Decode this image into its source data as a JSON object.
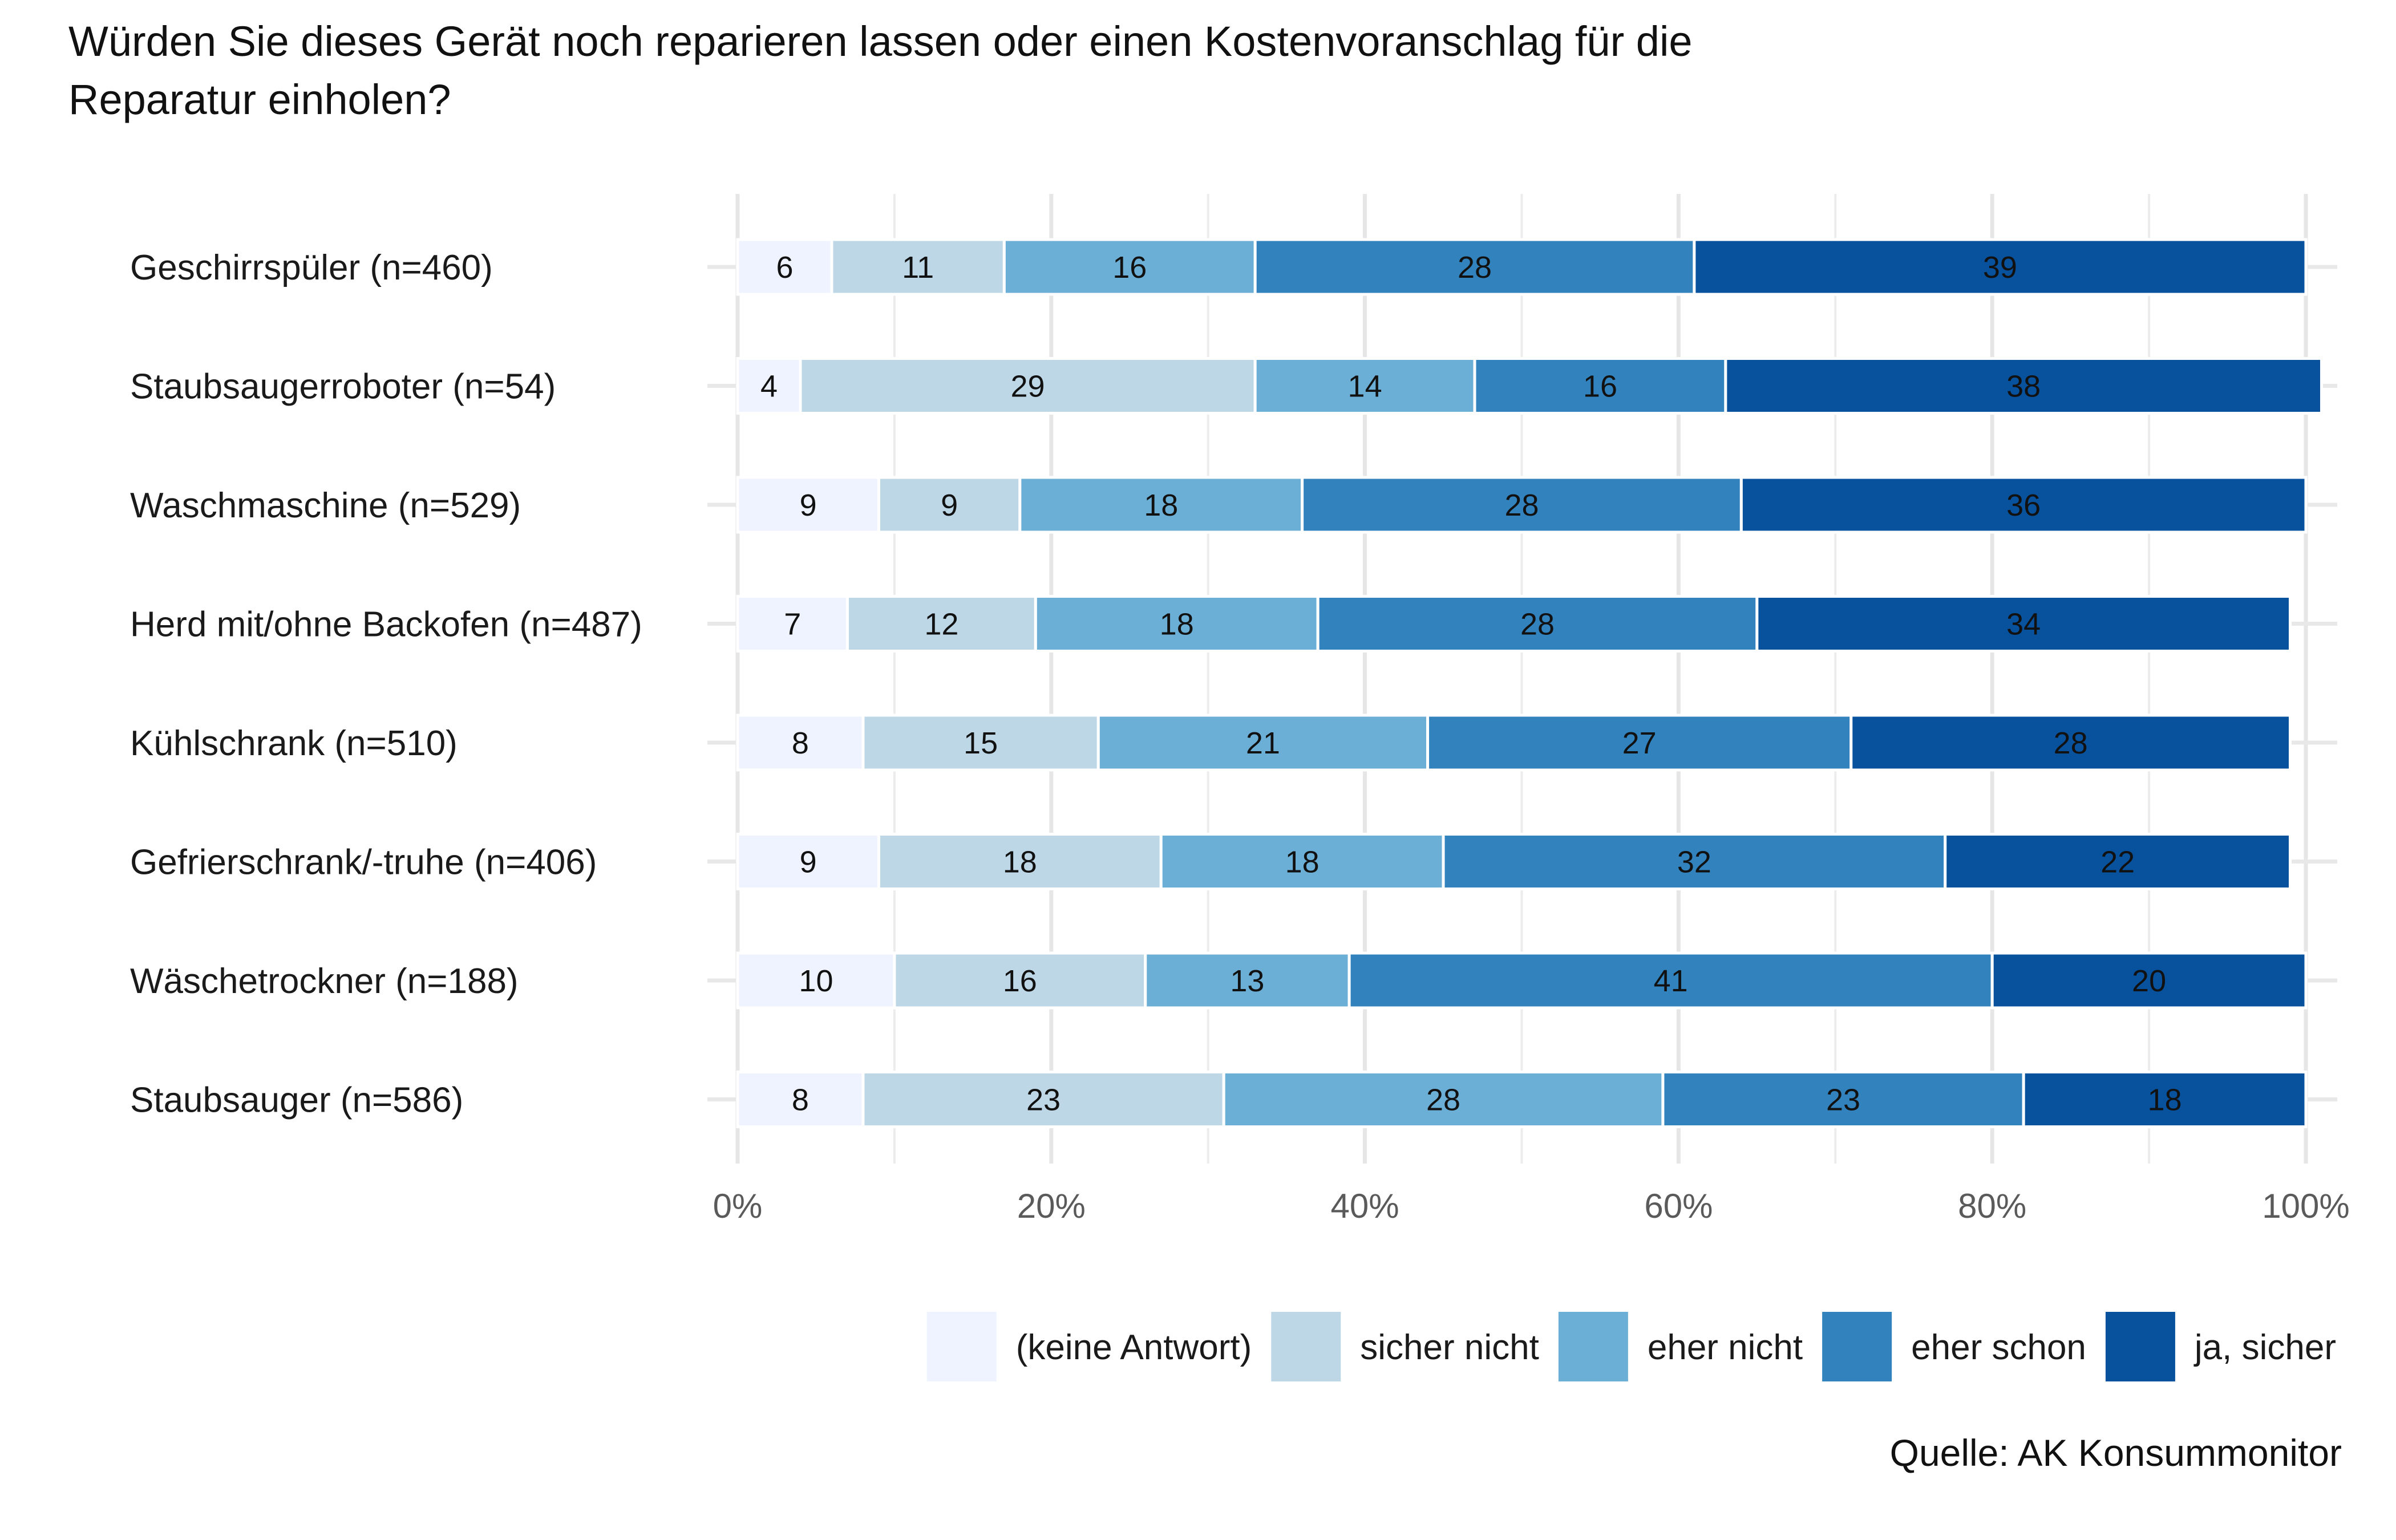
{
  "chart_data": {
    "type": "bar",
    "orientation": "horizontal",
    "stacked": true,
    "title_lines": [
      "Würden Sie dieses Gerät noch reparieren lassen oder einen Kostenvoranschlag für die",
      "Reparatur einholen?"
    ],
    "categories": [
      "Geschirrspüler (n=460)",
      "Staubsaugerroboter (n=54)",
      "Waschmaschine (n=529)",
      "Herd mit/ohne Backofen (n=487)",
      "Kühlschrank (n=510)",
      "Gefrierschrank/-truhe (n=406)",
      "Wäschetrockner (n=188)",
      "Staubsauger (n=586)"
    ],
    "series": [
      {
        "name": "(keine Antwort)",
        "color": "#EFF3FF",
        "values": [
          6,
          4,
          9,
          7,
          8,
          9,
          10,
          8
        ]
      },
      {
        "name": "sicher nicht",
        "color": "#BDD7E7",
        "values": [
          11,
          29,
          9,
          12,
          15,
          18,
          16,
          23
        ]
      },
      {
        "name": "eher nicht",
        "color": "#6BAED6",
        "values": [
          16,
          14,
          18,
          18,
          21,
          18,
          13,
          28
        ]
      },
      {
        "name": "eher schon",
        "color": "#3182BD",
        "values": [
          28,
          16,
          28,
          28,
          27,
          32,
          41,
          23
        ]
      },
      {
        "name": "ja, sicher",
        "color": "#08519C",
        "values": [
          39,
          38,
          36,
          34,
          28,
          22,
          20,
          18
        ]
      }
    ],
    "x_ticks": [
      "0%",
      "20%",
      "40%",
      "60%",
      "80%",
      "100%"
    ],
    "xlim": [
      0,
      100
    ],
    "xlabel": "",
    "ylabel": "",
    "legend_position": "bottom-right",
    "caption": "Quelle: AK Konsummonitor",
    "grid": true
  }
}
